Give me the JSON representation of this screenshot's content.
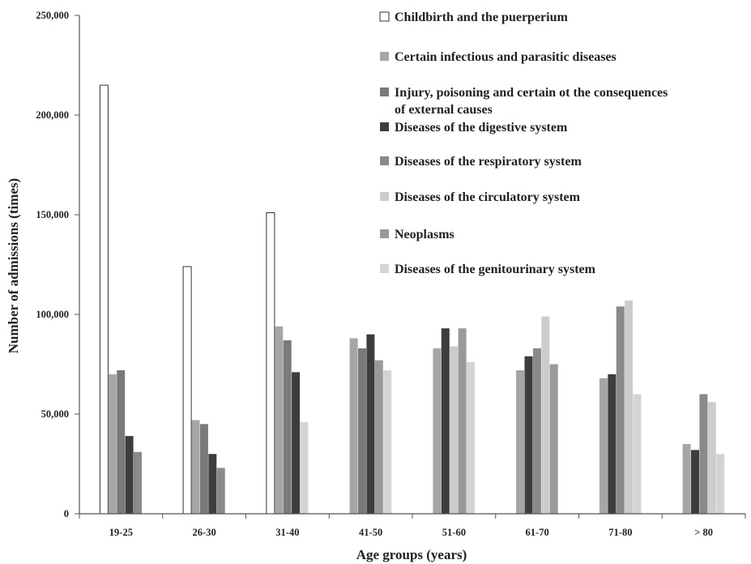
{
  "chart_data": {
    "type": "bar",
    "title": "",
    "xlabel": "Age groups (years)",
    "ylabel": "Number of admissions (times)",
    "ylim": [
      0,
      250000
    ],
    "yticks": [
      0,
      50000,
      100000,
      150000,
      200000,
      250000
    ],
    "ytick_labels": [
      "0",
      "50,000",
      "100,000",
      "150,000",
      "200,000",
      "250,000"
    ],
    "grid": false,
    "legend_position": "top-right",
    "categories": [
      "19-25",
      "26-30",
      "31-40",
      "41-50",
      "51-60",
      "61-70",
      "71-80",
      "> 80"
    ],
    "series": [
      {
        "name": "Childbirth and the puerperium",
        "color": "#ffffff",
        "stroke": "#333333",
        "values": [
          215000,
          124000,
          151000,
          null,
          null,
          null,
          null,
          null
        ]
      },
      {
        "name": "Certain infectious and parasitic diseases",
        "color": "#a6a6a6",
        "values": [
          70000,
          47000,
          94000,
          88000,
          83000,
          72000,
          68000,
          35000
        ]
      },
      {
        "name": "Injury, poisoning and certain ot the consequences of external causes",
        "color": "#7a7a7a",
        "values": [
          72000,
          45000,
          87000,
          83000,
          null,
          null,
          null,
          null
        ]
      },
      {
        "name": "Diseases of the digestive system",
        "color": "#3d3d3d",
        "values": [
          39000,
          30000,
          71000,
          90000,
          93000,
          79000,
          70000,
          32000
        ]
      },
      {
        "name": "Diseases of the respiratory system",
        "color": "#8a8a8a",
        "values": [
          31000,
          23000,
          null,
          null,
          null,
          83000,
          104000,
          60000
        ]
      },
      {
        "name": "Diseases of the circulatory system",
        "color": "#cccccc",
        "values": [
          null,
          null,
          null,
          null,
          84000,
          99000,
          107000,
          56000
        ]
      },
      {
        "name": "Neoplasms",
        "color": "#999999",
        "values": [
          null,
          null,
          null,
          77000,
          93000,
          75000,
          null,
          null
        ]
      },
      {
        "name": "Diseases of the genitourinary system",
        "color": "#d4d4d4",
        "values": [
          null,
          null,
          46000,
          72000,
          76000,
          null,
          60000,
          30000
        ]
      }
    ]
  }
}
